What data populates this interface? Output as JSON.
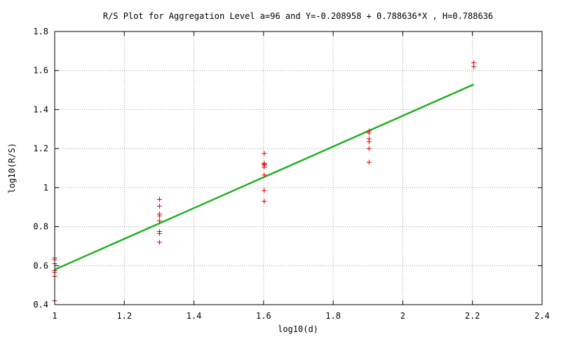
{
  "chart_data": {
    "type": "scatter",
    "title": "R/S Plot for Aggregation Level a=96 and Y=-0.208958 + 0.788636*X , H=0.788636",
    "xlabel": "log10(d)",
    "ylabel": "log10(R/S)",
    "xlim": [
      1,
      2.4
    ],
    "ylim": [
      0.4,
      1.8
    ],
    "x_ticks": [
      1,
      1.2,
      1.4,
      1.6,
      1.8,
      2,
      2.2,
      2.4
    ],
    "x_tick_labels": [
      "1",
      "1.2",
      "1.4",
      "1.6",
      "1.8",
      "2",
      "2.2",
      "2.4"
    ],
    "y_ticks": [
      0.4,
      0.6,
      0.8,
      1,
      1.2,
      1.4,
      1.6,
      1.8
    ],
    "y_tick_labels": [
      "0.4",
      "0.6",
      "0.8",
      "1",
      "1.2",
      "1.4",
      "1.6",
      "1.8"
    ],
    "grid": true,
    "colors": {
      "points": "#e00000",
      "fit_line": "#22b022",
      "grid": "#a0a0a0",
      "axes": "#000000"
    },
    "series": [
      {
        "kind": "points",
        "marker": "plus",
        "x": [
          1,
          1,
          1,
          1,
          1,
          1,
          1,
          1.301,
          1.301,
          1.301,
          1.301,
          1.301,
          1.301,
          1.301,
          1.301,
          1.602,
          1.602,
          1.602,
          1.602,
          1.602,
          1.602,
          1.602,
          1.602,
          1.903,
          1.903,
          1.903,
          1.903,
          1.903,
          1.903,
          2.204,
          2.204
        ],
        "y": [
          0.64,
          0.61,
          0.575,
          0.565,
          0.545,
          0.42,
          0.63,
          0.94,
          0.905,
          0.865,
          0.855,
          0.83,
          0.775,
          0.765,
          0.72,
          1.175,
          1.125,
          1.115,
          1.105,
          1.065,
          0.985,
          0.93,
          1.12,
          1.29,
          1.25,
          1.235,
          1.2,
          1.13,
          1.28,
          1.64,
          1.62
        ]
      },
      {
        "kind": "line",
        "x": [
          1,
          2.204
        ],
        "y": [
          0.5797,
          1.5292
        ]
      }
    ]
  }
}
